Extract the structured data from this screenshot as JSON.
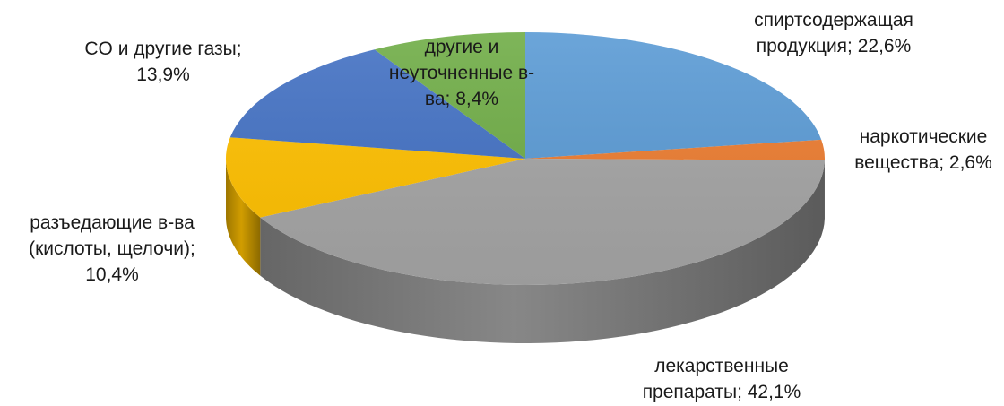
{
  "chart_data": {
    "type": "pie",
    "style": "3d-elliptic",
    "slices": [
      {
        "name": "спиртсодержащая продукция",
        "value": 22.6,
        "color": "#5b9bd5",
        "label_lines": [
          "спиртсодержащая",
          "продукция; 22,6%"
        ]
      },
      {
        "name": "наркотические вещества",
        "value": 2.6,
        "color": "#ed7d31",
        "label_lines": [
          "наркотические",
          "вещества; 2,6%"
        ]
      },
      {
        "name": "лекарственные препараты",
        "value": 42.1,
        "color": "#a5a5a5",
        "label_lines": [
          "лекарственные",
          "препараты; 42,1%"
        ]
      },
      {
        "name": "разъедающие в-ва (кислоты, щелочи)",
        "value": 10.4,
        "color": "#ffc000",
        "label_lines": [
          "разъедающие в-ва",
          "(кислоты, щелочи);",
          "10,4%"
        ]
      },
      {
        "name": "CO и другие газы",
        "value": 13.9,
        "color": "#4472c4",
        "label_lines": [
          "CO и другие газы;",
          "13,9%"
        ]
      },
      {
        "name": "другие и неуточненные в-ва",
        "value": 8.4,
        "color": "#70ad47",
        "label_lines": [
          "другие и",
          "неуточненные в-",
          "ва; 8,4%"
        ]
      }
    ],
    "start_angle": "12 o'clock",
    "direction": "clockwise",
    "legend": "none"
  }
}
